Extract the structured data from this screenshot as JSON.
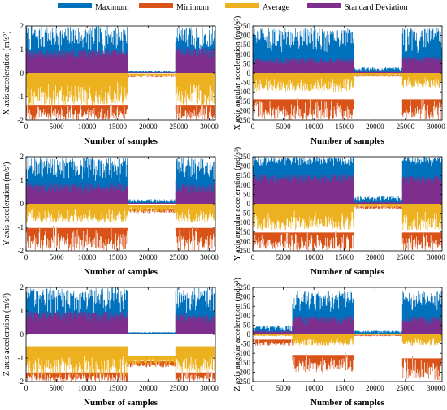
{
  "legend": {
    "position": "top",
    "items": [
      {
        "label": "Maximum",
        "color": "#0072BD"
      },
      {
        "label": "Minimum",
        "color": "#D95319"
      },
      {
        "label": "Average",
        "color": "#EDB120"
      },
      {
        "label": "Standard Deviation",
        "color": "#7E2F8E"
      }
    ]
  },
  "chart_data": [
    {
      "type": "area",
      "ylabel": "X axis acceleration (m/s²)",
      "xlabel": "Number of samples",
      "xlim": [
        0,
        31000
      ],
      "ylim": [
        -2,
        2
      ],
      "yticks": [
        -2,
        -1,
        0,
        1,
        2
      ],
      "xticks": [
        0,
        5000,
        10000,
        15000,
        20000,
        25000,
        30000
      ],
      "segments": [
        {
          "x": [
            0,
            16600
          ],
          "max": [
            0.3,
            2.0
          ],
          "std": [
            0.4,
            1.0
          ],
          "avg": [
            -1.4,
            -0.0
          ],
          "min": [
            -2.0,
            -1.0
          ]
        },
        {
          "x": [
            16600,
            24500
          ],
          "max": [
            0.0,
            0.08
          ],
          "std": [
            0.0,
            0.03
          ],
          "avg": [
            -0.12,
            -0.02
          ],
          "min": [
            -0.18,
            -0.05
          ]
        },
        {
          "x": [
            24500,
            31000
          ],
          "max": [
            0.3,
            2.0
          ],
          "std": [
            0.4,
            1.1
          ],
          "avg": [
            -1.4,
            -0.0
          ],
          "min": [
            -2.0,
            -1.0
          ]
        }
      ]
    },
    {
      "type": "area",
      "ylabel": "X axis angular acceleration (rad/s²)",
      "xlabel": "Number of samples",
      "xlim": [
        0,
        31000
      ],
      "ylim": [
        -250,
        250
      ],
      "yticks": [
        -250,
        -200,
        -150,
        -100,
        -50,
        0,
        50,
        100,
        150,
        200,
        250
      ],
      "xticks": [
        0,
        5000,
        10000,
        15000,
        20000,
        25000,
        30000
      ],
      "segments": [
        {
          "x": [
            0,
            16600
          ],
          "max": [
            60,
            240
          ],
          "std": [
            30,
            80
          ],
          "avg": [
            -100,
            0
          ],
          "min": [
            -250,
            -80
          ]
        },
        {
          "x": [
            16600,
            24500
          ],
          "max": [
            0,
            30
          ],
          "std": [
            0,
            8
          ],
          "avg": [
            -15,
            0
          ],
          "min": [
            -20,
            -5
          ]
        },
        {
          "x": [
            24500,
            31000
          ],
          "max": [
            60,
            240
          ],
          "std": [
            30,
            90
          ],
          "avg": [
            -80,
            0
          ],
          "min": [
            -250,
            -80
          ]
        }
      ]
    },
    {
      "type": "area",
      "ylabel": "Y axis acceleration (m/s²)",
      "xlabel": "Number of samples",
      "xlim": [
        0,
        31000
      ],
      "ylim": [
        -2,
        2
      ],
      "yticks": [
        -2,
        -1,
        0,
        1,
        2
      ],
      "xticks": [
        0,
        5000,
        10000,
        15000,
        20000,
        25000,
        30000
      ],
      "segments": [
        {
          "x": [
            0,
            16600
          ],
          "max": [
            0.5,
            2.0
          ],
          "std": [
            0.2,
            0.9
          ],
          "avg": [
            -0.8,
            0.0
          ],
          "min": [
            -2.0,
            -0.5
          ]
        },
        {
          "x": [
            16600,
            24500
          ],
          "max": [
            0.0,
            0.2
          ],
          "std": [
            0.0,
            0.05
          ],
          "avg": [
            -0.35,
            -0.05
          ],
          "min": [
            -0.4,
            -0.1
          ]
        },
        {
          "x": [
            24500,
            31000
          ],
          "max": [
            0.5,
            2.0
          ],
          "std": [
            0.2,
            0.9
          ],
          "avg": [
            -0.8,
            0.0
          ],
          "min": [
            -2.0,
            -0.5
          ]
        }
      ]
    },
    {
      "type": "area",
      "ylabel": "Y axis angular acceleration (rad/s²)",
      "xlabel": "Number of samples",
      "xlim": [
        0,
        31000
      ],
      "ylim": [
        -250,
        250
      ],
      "yticks": [
        -250,
        -200,
        -150,
        -100,
        -50,
        0,
        50,
        100,
        150,
        200,
        250
      ],
      "xticks": [
        0,
        5000,
        10000,
        15000,
        20000,
        25000,
        30000
      ],
      "segments": [
        {
          "x": [
            0,
            16600
          ],
          "max": [
            180,
            250
          ],
          "std": [
            80,
            160
          ],
          "avg": [
            -140,
            0
          ],
          "min": [
            -250,
            -100
          ]
        },
        {
          "x": [
            16600,
            24500
          ],
          "max": [
            5,
            40
          ],
          "std": [
            0,
            10
          ],
          "avg": [
            -20,
            0
          ],
          "min": [
            -30,
            -5
          ]
        },
        {
          "x": [
            24500,
            31000
          ],
          "max": [
            180,
            250
          ],
          "std": [
            80,
            150
          ],
          "avg": [
            -140,
            0
          ],
          "min": [
            -250,
            -100
          ]
        }
      ]
    },
    {
      "type": "area",
      "ylabel": "Z axis acceleration (m/s²)",
      "xlabel": "Number of samples",
      "xlim": [
        0,
        31000
      ],
      "ylim": [
        -2,
        2
      ],
      "yticks": [
        -2,
        -1,
        0,
        1,
        2
      ],
      "xticks": [
        0,
        5000,
        10000,
        15000,
        20000,
        25000,
        30000
      ],
      "segments": [
        {
          "x": [
            0,
            16600
          ],
          "max": [
            0.3,
            2.0
          ],
          "std": [
            0.3,
            1.0
          ],
          "avg": [
            -1.8,
            -0.5
          ],
          "min": [
            -2.0,
            -1.4
          ]
        },
        {
          "x": [
            16600,
            24500
          ],
          "max": [
            0.05,
            0.1
          ],
          "std": [
            0.0,
            0.05
          ],
          "avg": [
            -1.3,
            -0.9
          ],
          "min": [
            -1.4,
            -1.0
          ]
        },
        {
          "x": [
            24500,
            31000
          ],
          "max": [
            0.3,
            2.0
          ],
          "std": [
            0.3,
            0.9
          ],
          "avg": [
            -1.7,
            -0.5
          ],
          "min": [
            -2.0,
            -1.4
          ]
        }
      ]
    },
    {
      "type": "area",
      "ylabel": "Z axis angular acceleration (rad/s²)",
      "xlabel": "Number of samples",
      "xlim": [
        0,
        31000
      ],
      "ylim": [
        -250,
        250
      ],
      "yticks": [
        -250,
        -200,
        -150,
        -100,
        -50,
        0,
        50,
        100,
        150,
        200,
        250
      ],
      "xticks": [
        0,
        5000,
        10000,
        15000,
        20000,
        25000,
        30000
      ],
      "segments": [
        {
          "x": [
            0,
            6500
          ],
          "max": [
            0,
            50
          ],
          "std": [
            0,
            20
          ],
          "avg": [
            -10,
            0
          ],
          "min": [
            -60,
            -10
          ]
        },
        {
          "x": [
            6500,
            16600
          ],
          "max": [
            80,
            230
          ],
          "std": [
            30,
            100
          ],
          "avg": [
            -60,
            0
          ],
          "min": [
            -200,
            -60
          ]
        },
        {
          "x": [
            16600,
            24500
          ],
          "max": [
            0,
            20
          ],
          "std": [
            0,
            5
          ],
          "avg": [
            -5,
            0
          ],
          "min": [
            -10,
            -2
          ]
        },
        {
          "x": [
            24500,
            31000
          ],
          "max": [
            80,
            230
          ],
          "std": [
            30,
            100
          ],
          "avg": [
            -60,
            0
          ],
          "min": [
            -250,
            -60
          ]
        }
      ]
    }
  ]
}
